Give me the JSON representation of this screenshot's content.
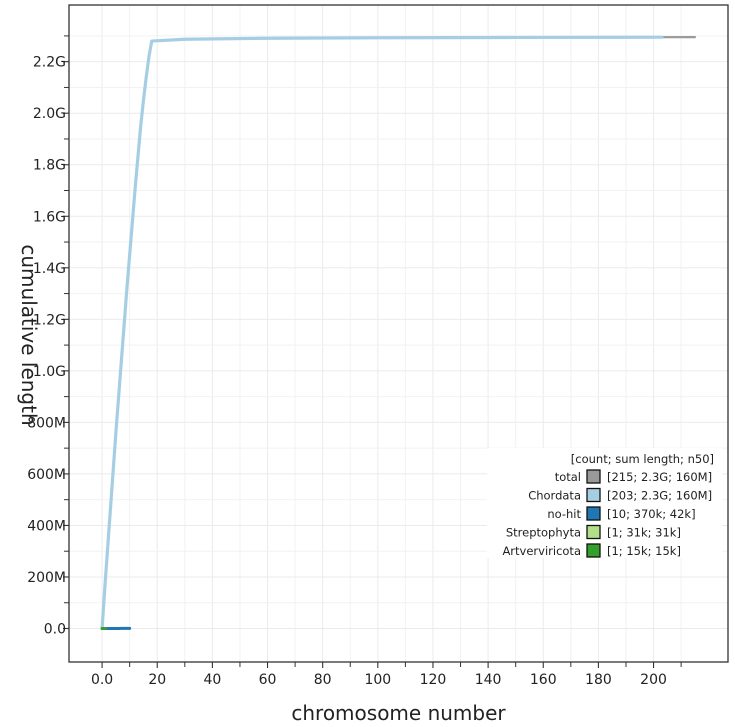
{
  "chart_data": {
    "type": "line",
    "title": "",
    "xlabel": "chromosome number",
    "ylabel": "cumulative length",
    "xlim": [
      -12,
      227
    ],
    "ylim": [
      -130000000.0,
      2420000000.0
    ],
    "grid": true,
    "x_ticks": [
      {
        "value": 0,
        "label": "0.0"
      },
      {
        "value": 20,
        "label": "20"
      },
      {
        "value": 40,
        "label": "40"
      },
      {
        "value": 60,
        "label": "60"
      },
      {
        "value": 80,
        "label": "80"
      },
      {
        "value": 100,
        "label": "100"
      },
      {
        "value": 120,
        "label": "120"
      },
      {
        "value": 140,
        "label": "140"
      },
      {
        "value": 160,
        "label": "160"
      },
      {
        "value": 180,
        "label": "180"
      },
      {
        "value": 200,
        "label": "200"
      }
    ],
    "y_ticks": [
      {
        "value": 0,
        "label": "0.0"
      },
      {
        "value": 200000000.0,
        "label": "200M"
      },
      {
        "value": 400000000.0,
        "label": "400M"
      },
      {
        "value": 600000000.0,
        "label": "600M"
      },
      {
        "value": 800000000.0,
        "label": "800M"
      },
      {
        "value": 1000000000.0,
        "label": "1.0G"
      },
      {
        "value": 1200000000.0,
        "label": "1.2G"
      },
      {
        "value": 1400000000.0,
        "label": "1.4G"
      },
      {
        "value": 1600000000.0,
        "label": "1.6G"
      },
      {
        "value": 1800000000.0,
        "label": "1.8G"
      },
      {
        "value": 2000000000.0,
        "label": "2.0G"
      },
      {
        "value": 2200000000.0,
        "label": "2.2G"
      }
    ],
    "legend": {
      "placement": "bottom-right",
      "header": "[count; sum length; n50]",
      "entries": [
        {
          "label": "total",
          "stats": "[215; 2.3G; 160M]",
          "color": "#999999"
        },
        {
          "label": "Chordata",
          "stats": "[203; 2.3G; 160M]",
          "color": "#a6cee3"
        },
        {
          "label": "no-hit",
          "stats": "[10; 370k; 42k]",
          "color": "#1f78b4"
        },
        {
          "label": "Streptophyta",
          "stats": "[1; 31k; 31k]",
          "color": "#b2df8a"
        },
        {
          "label": "Artverviricota",
          "stats": "[1; 15k; 15k]",
          "color": "#33a02c"
        }
      ]
    },
    "series": [
      {
        "name": "total",
        "color": "#999999",
        "width": 2.2,
        "points": [
          [
            0,
            0
          ],
          [
            1,
            160000000.0
          ],
          [
            2,
            310000000.0
          ],
          [
            3,
            460000000.0
          ],
          [
            4,
            610000000.0
          ],
          [
            5,
            760000000.0
          ],
          [
            6,
            900000000.0
          ],
          [
            7,
            1040000000.0
          ],
          [
            8,
            1180000000.0
          ],
          [
            9,
            1320000000.0
          ],
          [
            10,
            1450000000.0
          ],
          [
            11,
            1580000000.0
          ],
          [
            12,
            1710000000.0
          ],
          [
            13,
            1830000000.0
          ],
          [
            14,
            1950000000.0
          ],
          [
            15,
            2050000000.0
          ],
          [
            16,
            2140000000.0
          ],
          [
            17,
            2220000000.0
          ],
          [
            18,
            2280000000.0
          ],
          [
            30,
            2287000000.0
          ],
          [
            60,
            2291000000.0
          ],
          [
            100,
            2293000000.0
          ],
          [
            150,
            2294000000.0
          ],
          [
            203,
            2295000000.0
          ],
          [
            215,
            2295400000.0
          ]
        ]
      },
      {
        "name": "Chordata",
        "color": "#a6cee3",
        "width": 3.2,
        "points": [
          [
            0,
            0
          ],
          [
            1,
            160000000.0
          ],
          [
            2,
            310000000.0
          ],
          [
            3,
            460000000.0
          ],
          [
            4,
            610000000.0
          ],
          [
            5,
            760000000.0
          ],
          [
            6,
            900000000.0
          ],
          [
            7,
            1040000000.0
          ],
          [
            8,
            1180000000.0
          ],
          [
            9,
            1320000000.0
          ],
          [
            10,
            1450000000.0
          ],
          [
            11,
            1580000000.0
          ],
          [
            12,
            1710000000.0
          ],
          [
            13,
            1830000000.0
          ],
          [
            14,
            1950000000.0
          ],
          [
            15,
            2050000000.0
          ],
          [
            16,
            2140000000.0
          ],
          [
            17,
            2220000000.0
          ],
          [
            18,
            2280000000.0
          ],
          [
            30,
            2287000000.0
          ],
          [
            60,
            2291000000.0
          ],
          [
            100,
            2293000000.0
          ],
          [
            150,
            2294000000.0
          ],
          [
            203,
            2295000000.0
          ]
        ]
      },
      {
        "name": "no-hit",
        "color": "#1f78b4",
        "width": 3.0,
        "points": [
          [
            0,
            0
          ],
          [
            1,
            42000.0
          ],
          [
            2,
            84000.0
          ],
          [
            3,
            126000.0
          ],
          [
            4,
            168000.0
          ],
          [
            5,
            210000.0
          ],
          [
            6,
            250000.0
          ],
          [
            7,
            290000.0
          ],
          [
            8,
            330000.0
          ],
          [
            9,
            350000.0
          ],
          [
            10,
            370000.0
          ]
        ]
      },
      {
        "name": "Streptophyta",
        "color": "#b2df8a",
        "width": 3.0,
        "points": [
          [
            0,
            0
          ],
          [
            1,
            31000.0
          ]
        ]
      },
      {
        "name": "Artverviricota",
        "color": "#33a02c",
        "width": 3.0,
        "points": [
          [
            0,
            0
          ],
          [
            1,
            15000.0
          ]
        ]
      }
    ]
  }
}
